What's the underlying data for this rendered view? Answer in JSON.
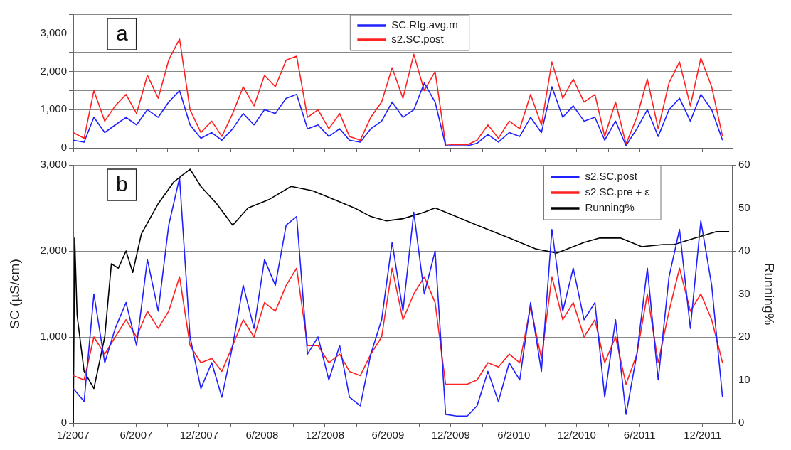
{
  "chart_data": [
    {
      "type": "line",
      "annotations": [
        "a"
      ],
      "legend": "top",
      "grid": "y",
      "tick_labels": "y",
      "marker": "none",
      "line_style": "solid",
      "x": [
        "2007-01",
        "2007-02",
        "2007-03",
        "2007-04",
        "2007-05",
        "2007-06",
        "2007-07",
        "2007-08",
        "2007-09",
        "2007-10",
        "2007-11",
        "2007-12",
        "2008-01",
        "2008-02",
        "2008-03",
        "2008-04",
        "2008-05",
        "2008-06",
        "2008-07",
        "2008-08",
        "2008-09",
        "2008-10",
        "2008-11",
        "2008-12",
        "2009-01",
        "2009-02",
        "2009-03",
        "2009-04",
        "2009-05",
        "2009-06",
        "2009-07",
        "2009-08",
        "2009-09",
        "2009-10",
        "2009-11",
        "2009-12",
        "2010-01",
        "2010-02",
        "2010-03",
        "2010-04",
        "2010-05",
        "2010-06",
        "2010-07",
        "2010-08",
        "2010-09",
        "2010-10",
        "2010-11",
        "2010-12",
        "2011-01",
        "2011-02",
        "2011-03",
        "2011-04",
        "2011-05",
        "2011-06",
        "2011-07",
        "2011-08",
        "2011-09",
        "2011-10",
        "2011-11",
        "2011-12",
        "2012-01",
        "2012-02"
      ],
      "series": [
        {
          "name": "SC.Rfg.avg.m",
          "color": "#2020ff",
          "values": [
            200,
            150,
            800,
            400,
            600,
            800,
            600,
            1000,
            800,
            1200,
            1500,
            600,
            250,
            400,
            200,
            500,
            900,
            600,
            1000,
            900,
            1300,
            1400,
            500,
            600,
            300,
            500,
            200,
            150,
            500,
            700,
            1200,
            800,
            1000,
            1700,
            1200,
            60,
            50,
            50,
            120,
            350,
            150,
            400,
            300,
            800,
            400,
            1600,
            800,
            1100,
            700,
            800,
            200,
            700,
            60,
            500,
            1000,
            300,
            1000,
            1300,
            700,
            1400,
            1000,
            200
          ]
        },
        {
          "name": "s2.SC.post",
          "color": "#ff2020",
          "values": [
            400,
            250,
            1500,
            700,
            1100,
            1400,
            900,
            1900,
            1300,
            2300,
            2850,
            1000,
            400,
            700,
            300,
            900,
            1600,
            1100,
            1900,
            1600,
            2300,
            2400,
            800,
            1000,
            500,
            900,
            300,
            200,
            800,
            1200,
            2100,
            1300,
            2450,
            1500,
            2000,
            100,
            80,
            80,
            200,
            600,
            250,
            700,
            500,
            1400,
            600,
            2250,
            1300,
            1800,
            1200,
            1400,
            300,
            1200,
            100,
            800,
            1800,
            500,
            1700,
            2250,
            1100,
            2350,
            1600,
            300
          ]
        }
      ],
      "xlim": [
        "2007-01-01",
        "2012-02-28"
      ],
      "xticks": [
        {
          "value": "2007-01-01",
          "label": null
        },
        {
          "value": "2007-04-01",
          "label": null
        },
        {
          "value": "2007-06-30",
          "label": null
        },
        {
          "value": "2007-09-28",
          "label": null
        },
        {
          "value": "2007-12-27",
          "label": null
        },
        {
          "value": "2008-03-26",
          "label": null
        },
        {
          "value": "2008-06-24",
          "label": null
        },
        {
          "value": "2008-09-22",
          "label": null
        },
        {
          "value": "2008-12-21",
          "label": null
        },
        {
          "value": "2009-03-21",
          "label": null
        },
        {
          "value": "2009-06-19",
          "label": null
        },
        {
          "value": "2009-09-17",
          "label": null
        },
        {
          "value": "2009-12-16",
          "label": null
        },
        {
          "value": "2010-03-16",
          "label": null
        },
        {
          "value": "2010-06-14",
          "label": null
        },
        {
          "value": "2010-09-12",
          "label": null
        },
        {
          "value": "2010-12-11",
          "label": null
        },
        {
          "value": "2011-03-11",
          "label": null
        },
        {
          "value": "2011-06-09",
          "label": null
        },
        {
          "value": "2011-09-07",
          "label": null
        },
        {
          "value": "2011-12-06",
          "label": null
        }
      ],
      "ylim": [
        0,
        3500
      ],
      "yticks": [
        0,
        {
          "value": 500,
          "label": null
        },
        {
          "value": 1000,
          "label": "1,000"
        },
        {
          "value": 1500,
          "label": null
        },
        {
          "value": 2000,
          "label": "2,000"
        },
        {
          "value": 2500,
          "label": null
        },
        {
          "value": 3000,
          "label": "3,000"
        },
        {
          "value": 3500,
          "label": null
        }
      ]
    },
    {
      "type": "line",
      "annotations": [
        "b"
      ],
      "legend": "top right",
      "grid": "y",
      "marker": "none",
      "line_style": "solid",
      "ylabel": "SC (µS/cm)",
      "y2label": "Running%",
      "x": [
        "2007-01",
        "2007-02",
        "2007-03",
        "2007-04",
        "2007-05",
        "2007-06",
        "2007-07",
        "2007-08",
        "2007-09",
        "2007-10",
        "2007-11",
        "2007-12",
        "2008-01",
        "2008-02",
        "2008-03",
        "2008-04",
        "2008-05",
        "2008-06",
        "2008-07",
        "2008-08",
        "2008-09",
        "2008-10",
        "2008-11",
        "2008-12",
        "2009-01",
        "2009-02",
        "2009-03",
        "2009-04",
        "2009-05",
        "2009-06",
        "2009-07",
        "2009-08",
        "2009-09",
        "2009-10",
        "2009-11",
        "2009-12",
        "2010-01",
        "2010-02",
        "2010-03",
        "2010-04",
        "2010-05",
        "2010-06",
        "2010-07",
        "2010-08",
        "2010-09",
        "2010-10",
        "2010-11",
        "2010-12",
        "2011-01",
        "2011-02",
        "2011-03",
        "2011-04",
        "2011-05",
        "2011-06",
        "2011-07",
        "2011-08",
        "2011-09",
        "2011-10",
        "2011-11",
        "2011-12",
        "2012-01",
        "2012-02"
      ],
      "series": [
        {
          "name": "s2.SC.post",
          "color": "#2020ff",
          "values": [
            400,
            250,
            1500,
            700,
            1100,
            1400,
            900,
            1900,
            1300,
            2300,
            2850,
            1000,
            400,
            700,
            300,
            900,
            1600,
            1100,
            1900,
            1600,
            2300,
            2400,
            800,
            1000,
            500,
            900,
            300,
            200,
            800,
            1200,
            2100,
            1300,
            2450,
            1500,
            2000,
            100,
            80,
            80,
            200,
            600,
            250,
            700,
            500,
            1400,
            600,
            2250,
            1300,
            1800,
            1200,
            1400,
            300,
            1200,
            100,
            800,
            1800,
            500,
            1700,
            2250,
            1100,
            2350,
            1600,
            300
          ]
        },
        {
          "name": "s2.SC.pre + ε",
          "color": "#ff2020",
          "values": [
            550,
            500,
            1000,
            800,
            1000,
            1200,
            1000,
            1300,
            1100,
            1300,
            1700,
            900,
            700,
            750,
            600,
            900,
            1200,
            1000,
            1400,
            1300,
            1600,
            1800,
            900,
            900,
            700,
            800,
            600,
            550,
            800,
            1000,
            1800,
            1200,
            1500,
            1700,
            1400,
            450,
            450,
            450,
            500,
            700,
            650,
            800,
            700,
            1350,
            750,
            1700,
            1200,
            1400,
            1000,
            1200,
            700,
            1000,
            450,
            800,
            1500,
            700,
            1300,
            1800,
            1300,
            1500,
            1200,
            700
          ]
        },
        {
          "name": "Running%",
          "color": "#000000",
          "axis": "y2",
          "x": [
            "2007-01-01",
            "2007-01-05",
            "2007-01-12",
            "2007-02-01",
            "2007-03-01",
            "2007-04-01",
            "2007-04-20",
            "2007-05-10",
            "2007-06-01",
            "2007-06-20",
            "2007-07-15",
            "2007-09-01",
            "2007-10-15",
            "2007-11-15",
            "2007-12-01",
            "2008-01-01",
            "2008-02-15",
            "2008-04-01",
            "2008-05-15",
            "2008-07-15",
            "2008-09-15",
            "2008-11-15",
            "2009-01-15",
            "2009-03-15",
            "2009-05-01",
            "2009-06-15",
            "2009-08-01",
            "2009-10-01",
            "2009-11-01",
            "2009-12-01",
            "2010-03-01",
            "2010-06-01",
            "2010-08-15",
            "2010-10-15",
            "2011-01-01",
            "2011-02-15",
            "2011-04-15",
            "2011-06-15",
            "2011-08-15",
            "2011-09-15",
            "2011-11-15",
            "2012-01-15",
            "2012-02-20"
          ],
          "values": [
            0,
            43,
            25,
            12,
            8,
            20,
            37,
            36,
            40,
            35,
            44,
            51,
            56,
            58,
            59,
            55,
            51,
            46,
            50,
            52,
            55,
            54,
            52,
            50,
            48,
            47,
            47.5,
            49,
            50,
            49,
            46,
            43,
            40.5,
            39.5,
            42,
            43,
            43,
            41,
            41.5,
            41.5,
            43,
            44.5,
            44.5
          ]
        }
      ],
      "xlim": [
        "2007-01-01",
        "2012-02-28"
      ],
      "xticks": [
        {
          "value": "2007-01-01",
          "label": "1/2007"
        },
        {
          "value": "2007-04-01",
          "label": null
        },
        {
          "value": "2007-06-30",
          "label": "6/2007"
        },
        {
          "value": "2007-09-28",
          "label": null
        },
        {
          "value": "2007-12-27",
          "label": "12/2007"
        },
        {
          "value": "2008-03-26",
          "label": null
        },
        {
          "value": "2008-06-24",
          "label": "6/2008"
        },
        {
          "value": "2008-09-22",
          "label": null
        },
        {
          "value": "2008-12-21",
          "label": "12/2008"
        },
        {
          "value": "2009-03-21",
          "label": null
        },
        {
          "value": "2009-06-19",
          "label": "6/2009"
        },
        {
          "value": "2009-09-17",
          "label": null
        },
        {
          "value": "2009-12-16",
          "label": "12/2009"
        },
        {
          "value": "2010-03-16",
          "label": null
        },
        {
          "value": "2010-06-14",
          "label": "6/2010"
        },
        {
          "value": "2010-09-12",
          "label": null
        },
        {
          "value": "2010-12-11",
          "label": "12/2010"
        },
        {
          "value": "2011-03-11",
          "label": null
        },
        {
          "value": "2011-06-09",
          "label": "6/2011"
        },
        {
          "value": "2011-09-07",
          "label": null
        },
        {
          "value": "2011-12-06",
          "label": "12/2011"
        }
      ],
      "ylim": [
        0,
        3000
      ],
      "yticks": [
        0,
        {
          "value": 500,
          "label": null
        },
        {
          "value": 1000,
          "label": "1,000"
        },
        {
          "value": 1500,
          "label": null
        },
        {
          "value": 2000,
          "label": "2,000"
        },
        {
          "value": 2500,
          "label": null
        },
        {
          "value": 3000,
          "label": "3,000"
        }
      ],
      "y2lim": [
        0,
        60
      ],
      "y2ticks": [
        0,
        10,
        20,
        30,
        40,
        50,
        60
      ]
    }
  ]
}
